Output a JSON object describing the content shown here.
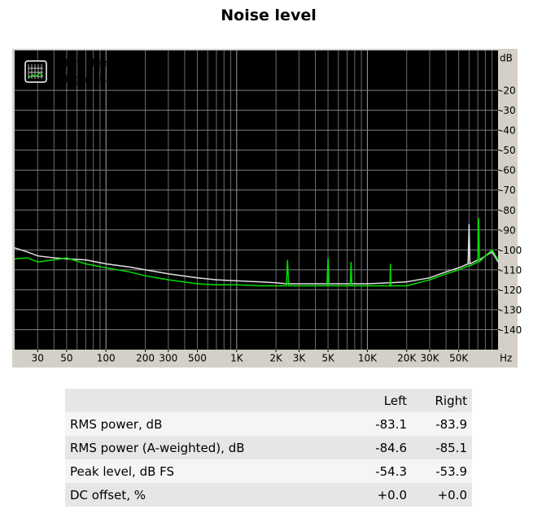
{
  "chart_data": {
    "type": "line",
    "title": "Noise level",
    "x": [
      20,
      25,
      30,
      40,
      50,
      70,
      100,
      150,
      200,
      300,
      500,
      700,
      1000,
      1500,
      2000,
      2400,
      2450,
      2500,
      3000,
      3500,
      4900,
      5000,
      5100,
      7000,
      7400,
      7500,
      7600,
      10000,
      14900,
      15000,
      15100,
      20000,
      30000,
      40000,
      50000,
      59000,
      60000,
      61000,
      70000,
      71000,
      72000,
      80000,
      90000,
      100000
    ],
    "xlim": [
      20,
      100000
    ],
    "log_x": true,
    "xticks": [
      30,
      50,
      100,
      200,
      300,
      500,
      {
        "value": 1000,
        "label": "1K"
      },
      {
        "value": 2000,
        "label": "2K"
      },
      {
        "value": 3000,
        "label": "3K"
      },
      {
        "value": 5000,
        "label": "5K"
      },
      {
        "value": 10000,
        "label": "10K"
      },
      {
        "value": 20000,
        "label": "20K"
      },
      {
        "value": 30000,
        "label": "30K"
      },
      {
        "value": 50000,
        "label": "50K"
      }
    ],
    "x_unit": "Hz",
    "y_unit": "dB",
    "ylim": [
      -150,
      0
    ],
    "yticks": [
      -20,
      -30,
      -40,
      -50,
      -60,
      -70,
      -80,
      -90,
      -100,
      -110,
      -120,
      -130,
      -140
    ],
    "grid": true,
    "legend": "upper left",
    "series": [
      {
        "name": "Left channel",
        "color": "#e0e0e0",
        "values": [
          -99,
          -101,
          -103,
          -104,
          -104.5,
          -105,
          -107,
          -108.5,
          -110,
          -112,
          -114,
          -115,
          -115.5,
          -116,
          -116.5,
          -117,
          -117,
          -117,
          -117,
          -117,
          -117,
          -117,
          -117,
          -117,
          -117,
          -117,
          -117,
          -117,
          -116.5,
          -116.5,
          -116.5,
          -116,
          -114,
          -111,
          -109,
          -107,
          -87,
          -107,
          -105,
          -105,
          -105,
          -103,
          -101,
          -106
        ]
      },
      {
        "name": "Right channel",
        "color": "#00e000",
        "values": [
          -104.5,
          -104,
          -106,
          -105,
          -104,
          -107,
          -109,
          -111,
          -113,
          -115,
          -117,
          -117.5,
          -117.5,
          -118,
          -118,
          -118,
          -105,
          -118,
          -118,
          -118,
          -118,
          -104,
          -118,
          -118,
          -118,
          -106,
          -118,
          -118,
          -118,
          -107,
          -118,
          -118,
          -115,
          -112,
          -110,
          -108,
          -108,
          -108,
          -106,
          -84,
          -106,
          -103,
          -100,
          -105
        ]
      }
    ]
  },
  "table": {
    "columns": [
      "Left",
      "Right"
    ],
    "rows": [
      {
        "label": "RMS power, dB",
        "values": [
          "-83.1",
          "-83.9"
        ]
      },
      {
        "label": "RMS power (A-weighted), dB",
        "values": [
          "-84.6",
          "-85.1"
        ]
      },
      {
        "label": "Peak level, dB FS",
        "values": [
          "-54.3",
          "-53.9"
        ]
      },
      {
        "label": "DC offset, %",
        "values": [
          "+0.0",
          "+0.0"
        ]
      }
    ]
  }
}
